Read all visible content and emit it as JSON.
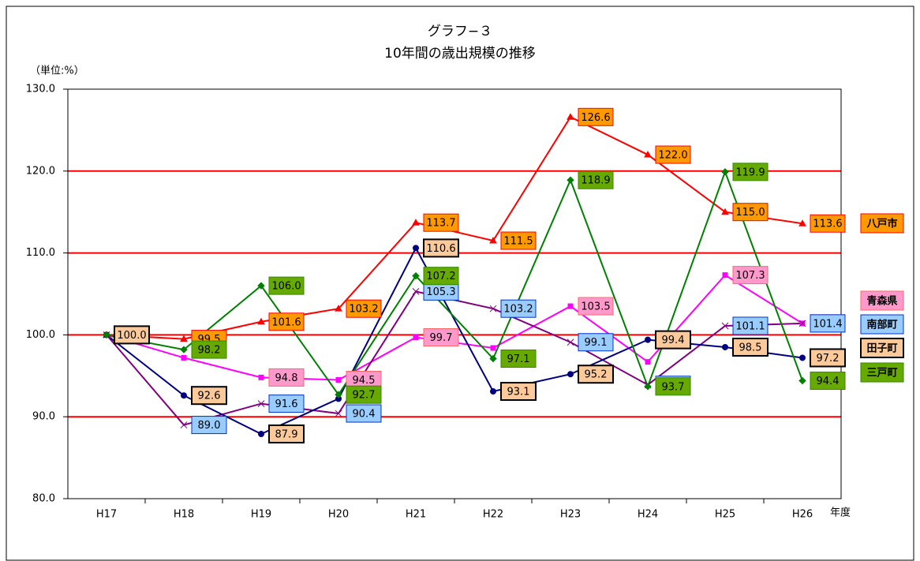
{
  "chart_data": {
    "type": "line",
    "title": "グラフ−３",
    "subtitle": "10年間の歳出規模の推移",
    "y_label": "（単位:%）",
    "x_label": "年度",
    "categories": [
      "H17",
      "H18",
      "H19",
      "H20",
      "H21",
      "H22",
      "H23",
      "H24",
      "H25",
      "H26"
    ],
    "ylim": [
      80,
      130
    ],
    "yticks": [
      {
        "value": 80,
        "label": "80.0"
      },
      {
        "value": 90,
        "label": "90.0"
      },
      {
        "value": 100,
        "label": "100.0"
      },
      {
        "value": 110,
        "label": "110.0"
      },
      {
        "value": 120,
        "label": "120.0"
      },
      {
        "value": 130,
        "label": "130.0"
      }
    ],
    "grid": true,
    "grid_color": "#ff0000",
    "series": [
      {
        "name": "八戸市",
        "color": "#ff0000",
        "label_color": "#ff9900",
        "label_border": "#ff0000",
        "marker": "triangle",
        "values": [
          100,
          99.5,
          101.6,
          103.2,
          113.7,
          111.5,
          126.6,
          122.0,
          115.0,
          113.6
        ],
        "value_labels": [
          null,
          "99.5",
          "101.6",
          "103.2",
          "113.7",
          "111.5",
          "126.6",
          "122.0",
          "115.0",
          "113.6"
        ]
      },
      {
        "name": "青森県",
        "color": "#ff00ff",
        "label_color": "#ff99cc",
        "label_border": "#ff6666",
        "marker": "square",
        "values": [
          100,
          97.2,
          94.8,
          94.5,
          99.7,
          98.4,
          103.5,
          96.7,
          107.3,
          101.4
        ],
        "value_labels": [
          null,
          null,
          "94.8",
          "94.5",
          "99.7",
          null,
          "103.5",
          null,
          "107.3",
          "101.4"
        ]
      },
      {
        "name": "南部町",
        "color": "#800080",
        "label_color": "#99ccff",
        "label_border": "#0033cc",
        "marker": "x",
        "values": [
          100,
          89.0,
          91.6,
          90.4,
          105.3,
          103.2,
          99.1,
          93.9,
          101.1,
          101.4
        ],
        "value_labels": [
          null,
          "89.0",
          "91.6",
          "90.4",
          "105.3",
          "103.2",
          "99.1",
          "93.9",
          "101.1",
          "101.4"
        ]
      },
      {
        "name": "田子町",
        "color": "#000080",
        "label_color": "#fbc99a",
        "label_border": "#000000",
        "marker": "circle",
        "values": [
          100.0,
          92.6,
          87.9,
          92.2,
          110.6,
          93.1,
          95.2,
          99.4,
          98.5,
          97.2
        ],
        "value_labels": [
          "100.0",
          "92.6",
          "87.9",
          null,
          "110.6",
          "93.1",
          "95.2",
          "99.4",
          "98.5",
          "97.2"
        ]
      },
      {
        "name": "三戸町",
        "color": "#008000",
        "label_color": "#66aa00",
        "label_border": "#338800",
        "marker": "diamond",
        "values": [
          100,
          98.2,
          106.0,
          92.7,
          107.2,
          97.1,
          118.9,
          93.7,
          119.9,
          94.4
        ],
        "value_labels": [
          null,
          "98.2",
          "106.0",
          "92.7",
          "107.2",
          "97.1",
          "118.9",
          "93.7",
          "119.9",
          "94.4"
        ]
      }
    ]
  }
}
